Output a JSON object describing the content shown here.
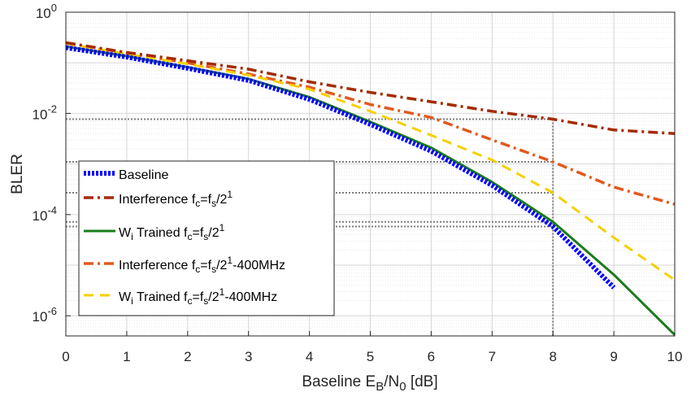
{
  "chart_data": {
    "type": "line",
    "title": "",
    "xlabel": {
      "main": "Baseline E",
      "sub1": "B",
      "mid": "/N",
      "sub2": "0",
      "tail": " [dB]"
    },
    "ylabel": "BLER",
    "xlim": [
      0,
      10
    ],
    "ylim": [
      4e-07,
      1
    ],
    "yscale": "log",
    "grid": true,
    "legend_position": "lower-left",
    "x_ticks": [
      "0",
      "1",
      "2",
      "3",
      "4",
      "5",
      "6",
      "7",
      "8",
      "9",
      "10"
    ],
    "y_ticks": [
      {
        "base": "10",
        "exp": "0",
        "value": 1
      },
      {
        "base": "10",
        "exp": "-2",
        "value": 0.01
      },
      {
        "base": "10",
        "exp": "-4",
        "value": 0.0001
      },
      {
        "base": "10",
        "exp": "-6",
        "value": 1e-06
      }
    ],
    "series": [
      {
        "name": "Baseline",
        "color": "#0000ff",
        "style": "dotted",
        "x": [
          0,
          1,
          2,
          3,
          4,
          5,
          6,
          7,
          8,
          9
        ],
        "y": [
          0.2,
          0.13,
          0.078,
          0.045,
          0.019,
          0.0061,
          0.0018,
          0.00038,
          5.8e-05,
          3.6e-06
        ]
      },
      {
        "name": "Interference fc=fs/2^1",
        "color": "#a52a00",
        "style": "dashdot",
        "x": [
          0,
          1,
          2,
          3,
          4,
          5,
          6,
          7,
          8,
          9,
          10
        ],
        "y": [
          0.25,
          0.16,
          0.11,
          0.075,
          0.042,
          0.026,
          0.017,
          0.011,
          0.0077,
          0.0047,
          0.004
        ]
      },
      {
        "name": "Wi Trained fc=fs/2^1",
        "color": "#1a7d1a",
        "style": "solid",
        "x": [
          0,
          1,
          2,
          3,
          4,
          5,
          6,
          7,
          8,
          9,
          10
        ],
        "y": [
          0.21,
          0.135,
          0.082,
          0.048,
          0.021,
          0.0068,
          0.0021,
          0.00044,
          7.2e-05,
          6.5e-06,
          4.2e-07
        ]
      },
      {
        "name": "Interference fc=fs/2^1-400MHz",
        "color": "#e05a1e",
        "style": "dashdot",
        "x": [
          0,
          1,
          2,
          3,
          4,
          5,
          6,
          7,
          8,
          9,
          10
        ],
        "y": [
          0.25,
          0.155,
          0.1,
          0.06,
          0.033,
          0.015,
          0.0083,
          0.003,
          0.0011,
          0.00035,
          0.00016
        ]
      },
      {
        "name": "Wi Trained fc=fs/2^1-400MHz",
        "color": "#f5d000",
        "style": "dashed",
        "x": [
          0,
          1,
          2,
          3,
          4,
          5,
          6,
          7,
          8,
          9,
          10
        ],
        "y": [
          0.24,
          0.15,
          0.095,
          0.057,
          0.03,
          0.011,
          0.0037,
          0.0012,
          0.00027,
          3.5e-05,
          5.1e-06
        ]
      }
    ],
    "annotations": {
      "vertical_reference_x": 8,
      "horizontal_reference_y": [
        0.0077,
        0.0011,
        0.00027,
        7.2e-05,
        5.8e-05
      ]
    }
  },
  "legend": [
    {
      "pre": "Baseline"
    },
    {
      "pre": "Interference f",
      "s1": "c",
      "m1": "=f",
      "s2": "s",
      "m2": "/2",
      "sup": "1",
      "post": ""
    },
    {
      "pre": "W",
      "sub0": "i",
      "pre2": " Trained f",
      "s1": "c",
      "m1": "=f",
      "s2": "s",
      "m2": "/2",
      "sup": "1",
      "post": ""
    },
    {
      "pre": "Interference f",
      "s1": "c",
      "m1": "=f",
      "s2": "s",
      "m2": "/2",
      "sup": "1",
      "post": "-400MHz"
    },
    {
      "pre": "W",
      "sub0": "i",
      "pre2": " Trained f",
      "s1": "c",
      "m1": "=f",
      "s2": "s",
      "m2": "/2",
      "sup": "1",
      "post": "-400MHz"
    }
  ]
}
